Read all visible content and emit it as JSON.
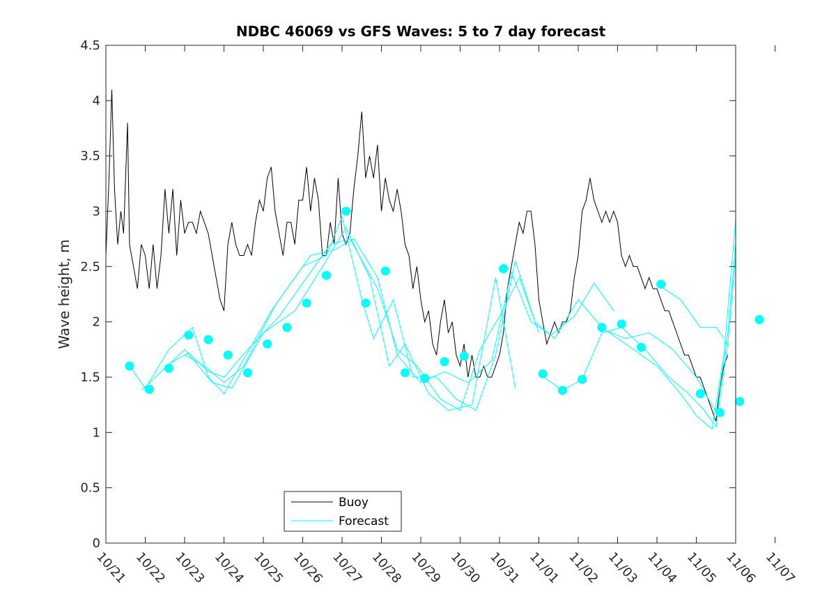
{
  "chart_data": {
    "type": "line",
    "title": "NDBC 46069 vs GFS Waves: 5 to 7 day forecast",
    "xlabel": "",
    "ylabel": "Wave height, m",
    "ylim": [
      0,
      4.5
    ],
    "yticks": [
      "0",
      "0.5",
      "1",
      "1.5",
      "2",
      "2.5",
      "3",
      "3.5",
      "4",
      "4.5"
    ],
    "xlim": [
      0,
      16
    ],
    "xticks": [
      "10/21",
      "10/22",
      "10/23",
      "10/24",
      "10/25",
      "10/26",
      "10/27",
      "10/28",
      "10/29",
      "10/30",
      "10/31",
      "11/01",
      "11/02",
      "11/03",
      "11/04",
      "11/05",
      "11/06",
      "11/07"
    ],
    "legend": {
      "position": "bottom-center",
      "entries": [
        "Buoy",
        "Forecast"
      ]
    },
    "colors": {
      "buoy": "#000000",
      "forecast": "#00ffff"
    },
    "buoy": [
      [
        0.0,
        2.6
      ],
      [
        0.08,
        3.3
      ],
      [
        0.15,
        4.1
      ],
      [
        0.22,
        3.2
      ],
      [
        0.3,
        2.7
      ],
      [
        0.38,
        3.0
      ],
      [
        0.45,
        2.8
      ],
      [
        0.55,
        3.8
      ],
      [
        0.6,
        2.7
      ],
      [
        0.7,
        2.5
      ],
      [
        0.8,
        2.3
      ],
      [
        0.9,
        2.7
      ],
      [
        1.0,
        2.6
      ],
      [
        1.1,
        2.3
      ],
      [
        1.2,
        2.7
      ],
      [
        1.3,
        2.3
      ],
      [
        1.4,
        2.6
      ],
      [
        1.5,
        3.2
      ],
      [
        1.6,
        2.8
      ],
      [
        1.7,
        3.2
      ],
      [
        1.8,
        2.6
      ],
      [
        1.9,
        3.1
      ],
      [
        2.0,
        2.8
      ],
      [
        2.1,
        2.9
      ],
      [
        2.2,
        2.9
      ],
      [
        2.3,
        2.8
      ],
      [
        2.4,
        3.0
      ],
      [
        2.5,
        2.9
      ],
      [
        2.6,
        2.8
      ],
      [
        2.7,
        2.6
      ],
      [
        2.8,
        2.4
      ],
      [
        2.9,
        2.2
      ],
      [
        3.0,
        2.1
      ],
      [
        3.1,
        2.7
      ],
      [
        3.2,
        2.9
      ],
      [
        3.3,
        2.7
      ],
      [
        3.4,
        2.6
      ],
      [
        3.5,
        2.6
      ],
      [
        3.6,
        2.7
      ],
      [
        3.7,
        2.6
      ],
      [
        3.8,
        2.9
      ],
      [
        3.9,
        3.1
      ],
      [
        4.0,
        3.0
      ],
      [
        4.1,
        3.3
      ],
      [
        4.2,
        3.4
      ],
      [
        4.3,
        3.0
      ],
      [
        4.4,
        2.8
      ],
      [
        4.5,
        2.6
      ],
      [
        4.6,
        2.9
      ],
      [
        4.7,
        2.9
      ],
      [
        4.8,
        2.7
      ],
      [
        4.9,
        3.1
      ],
      [
        5.0,
        3.1
      ],
      [
        5.1,
        3.4
      ],
      [
        5.2,
        3.0
      ],
      [
        5.3,
        3.3
      ],
      [
        5.4,
        3.1
      ],
      [
        5.5,
        2.6
      ],
      [
        5.6,
        2.6
      ],
      [
        5.7,
        2.9
      ],
      [
        5.8,
        2.7
      ],
      [
        5.9,
        3.3
      ],
      [
        6.0,
        2.8
      ],
      [
        6.1,
        2.7
      ],
      [
        6.2,
        2.8
      ],
      [
        6.3,
        3.2
      ],
      [
        6.4,
        3.5
      ],
      [
        6.5,
        3.9
      ],
      [
        6.6,
        3.3
      ],
      [
        6.7,
        3.5
      ],
      [
        6.8,
        3.3
      ],
      [
        6.9,
        3.6
      ],
      [
        7.0,
        3.0
      ],
      [
        7.1,
        3.3
      ],
      [
        7.2,
        3.1
      ],
      [
        7.3,
        3.0
      ],
      [
        7.4,
        3.2
      ],
      [
        7.5,
        3.0
      ],
      [
        7.6,
        2.7
      ],
      [
        7.7,
        2.6
      ],
      [
        7.8,
        2.3
      ],
      [
        7.9,
        2.5
      ],
      [
        8.0,
        2.2
      ],
      [
        8.1,
        2.0
      ],
      [
        8.2,
        2.1
      ],
      [
        8.3,
        1.8
      ],
      [
        8.4,
        1.7
      ],
      [
        8.5,
        2.0
      ],
      [
        8.6,
        2.2
      ],
      [
        8.7,
        1.9
      ],
      [
        8.8,
        2.0
      ],
      [
        8.9,
        1.7
      ],
      [
        9.0,
        1.6
      ],
      [
        9.1,
        1.8
      ],
      [
        9.2,
        1.5
      ],
      [
        9.3,
        1.7
      ],
      [
        9.4,
        1.5
      ],
      [
        9.5,
        1.5
      ],
      [
        9.6,
        1.6
      ],
      [
        9.7,
        1.5
      ],
      [
        9.8,
        1.5
      ],
      [
        9.9,
        1.6
      ],
      [
        10.0,
        1.7
      ],
      [
        10.1,
        1.9
      ],
      [
        10.2,
        2.3
      ],
      [
        10.3,
        2.5
      ],
      [
        10.4,
        2.7
      ],
      [
        10.5,
        2.9
      ],
      [
        10.6,
        2.8
      ],
      [
        10.7,
        3.0
      ],
      [
        10.8,
        3.0
      ],
      [
        10.9,
        2.7
      ],
      [
        11.0,
        2.2
      ],
      [
        11.1,
        2.0
      ],
      [
        11.2,
        1.8
      ],
      [
        11.3,
        1.9
      ],
      [
        11.4,
        2.0
      ],
      [
        11.5,
        1.9
      ],
      [
        11.6,
        2.0
      ],
      [
        11.7,
        2.0
      ],
      [
        11.8,
        2.1
      ],
      [
        11.9,
        2.4
      ],
      [
        12.0,
        2.6
      ],
      [
        12.1,
        3.0
      ],
      [
        12.2,
        3.1
      ],
      [
        12.3,
        3.3
      ],
      [
        12.4,
        3.1
      ],
      [
        12.5,
        3.0
      ],
      [
        12.6,
        2.9
      ],
      [
        12.7,
        3.0
      ],
      [
        12.8,
        2.9
      ],
      [
        12.9,
        3.0
      ],
      [
        13.0,
        2.9
      ],
      [
        13.1,
        2.6
      ],
      [
        13.2,
        2.5
      ],
      [
        13.3,
        2.6
      ],
      [
        13.4,
        2.5
      ],
      [
        13.5,
        2.5
      ],
      [
        13.6,
        2.4
      ],
      [
        13.7,
        2.3
      ],
      [
        13.8,
        2.4
      ],
      [
        13.9,
        2.3
      ],
      [
        14.0,
        2.3
      ],
      [
        14.1,
        2.2
      ],
      [
        14.2,
        2.1
      ],
      [
        14.3,
        2.1
      ],
      [
        14.4,
        2.0
      ],
      [
        14.5,
        1.9
      ],
      [
        14.6,
        1.8
      ],
      [
        14.7,
        1.7
      ],
      [
        14.8,
        1.7
      ],
      [
        14.9,
        1.6
      ],
      [
        15.0,
        1.5
      ],
      [
        15.1,
        1.5
      ],
      [
        15.2,
        1.4
      ],
      [
        15.3,
        1.3
      ],
      [
        15.4,
        1.2
      ],
      [
        15.5,
        1.1
      ],
      [
        15.6,
        1.4
      ],
      [
        15.7,
        1.6
      ],
      [
        15.8,
        1.7
      ]
    ],
    "forecast_series": [
      {
        "name": "Forecast",
        "points": [
          [
            0.6,
            1.6
          ],
          [
            1.0,
            1.4
          ],
          [
            1.6,
            1.75
          ],
          [
            2.2,
            1.95
          ],
          [
            2.6,
            1.5
          ],
          [
            3.0,
            1.35
          ],
          [
            3.4,
            1.6
          ],
          [
            4.2,
            2.1
          ],
          [
            5.0,
            2.5
          ],
          [
            5.6,
            2.6
          ],
          [
            6.0,
            2.95
          ],
          [
            6.5,
            2.2
          ],
          [
            6.8,
            1.85
          ],
          [
            7.3,
            2.2
          ],
          [
            7.8,
            1.5
          ],
          [
            8.4,
            1.5
          ],
          [
            8.9,
            1.3
          ],
          [
            9.4,
            1.2
          ],
          [
            9.9,
            1.7
          ],
          [
            10.4,
            2.55
          ],
          [
            10.9,
            2.0
          ],
          [
            11.4,
            1.85
          ],
          [
            12.0,
            2.2
          ],
          [
            12.6,
            1.95
          ],
          [
            13.2,
            1.8
          ],
          [
            14.0,
            1.6
          ],
          [
            14.6,
            1.35
          ],
          [
            15.0,
            1.15
          ],
          [
            15.4,
            1.03
          ],
          [
            15.7,
            1.7
          ],
          [
            16.0,
            2.92
          ]
        ]
      },
      {
        "name": "Forecast",
        "points": [
          [
            0.9,
            1.38
          ],
          [
            1.4,
            1.55
          ],
          [
            2.0,
            1.75
          ],
          [
            2.7,
            1.45
          ],
          [
            3.2,
            1.4
          ],
          [
            4.0,
            1.9
          ],
          [
            4.8,
            2.1
          ],
          [
            5.5,
            2.5
          ],
          [
            6.1,
            2.85
          ],
          [
            6.7,
            2.4
          ],
          [
            7.2,
            1.6
          ],
          [
            7.6,
            1.8
          ],
          [
            8.2,
            1.35
          ],
          [
            8.7,
            1.2
          ],
          [
            9.3,
            1.25
          ],
          [
            9.9,
            2.4
          ],
          [
            10.4,
            1.4
          ]
        ]
      },
      {
        "name": "Forecast",
        "points": [
          [
            1.5,
            1.6
          ],
          [
            2.1,
            1.72
          ],
          [
            2.6,
            1.55
          ],
          [
            3.0,
            1.5
          ],
          [
            3.6,
            1.75
          ],
          [
            4.4,
            2.05
          ],
          [
            5.1,
            2.4
          ],
          [
            5.7,
            2.7
          ],
          [
            6.2,
            2.75
          ],
          [
            6.9,
            2.3
          ],
          [
            7.4,
            1.75
          ],
          [
            7.9,
            1.6
          ],
          [
            8.5,
            1.3
          ],
          [
            9.0,
            1.2
          ],
          [
            9.5,
            1.75
          ],
          [
            10.0,
            2.05
          ],
          [
            10.5,
            2.4
          ],
          [
            11.0,
            1.9
          ]
        ]
      },
      {
        "name": "Forecast",
        "points": [
          [
            2.0,
            1.7
          ],
          [
            2.5,
            1.6
          ],
          [
            3.0,
            1.45
          ],
          [
            3.5,
            1.6
          ],
          [
            4.3,
            2.15
          ],
          [
            5.2,
            2.6
          ],
          [
            5.8,
            2.65
          ],
          [
            6.3,
            2.75
          ],
          [
            6.9,
            2.4
          ],
          [
            7.4,
            1.7
          ],
          [
            8.0,
            1.45
          ],
          [
            8.6,
            1.55
          ],
          [
            9.2,
            1.45
          ],
          [
            9.8,
            1.65
          ],
          [
            10.3,
            2.45
          ],
          [
            10.8,
            2.0
          ],
          [
            11.3,
            1.88
          ],
          [
            11.9,
            2.05
          ],
          [
            12.4,
            2.35
          ],
          [
            12.9,
            2.1
          ]
        ]
      },
      {
        "name": "Forecast",
        "points": [
          [
            11.0,
            1.53
          ],
          [
            11.6,
            1.38
          ],
          [
            12.1,
            1.48
          ],
          [
            12.6,
            1.9
          ],
          [
            13.1,
            1.95
          ],
          [
            13.7,
            1.75
          ],
          [
            14.3,
            1.5
          ],
          [
            14.8,
            1.35
          ],
          [
            15.2,
            1.2
          ],
          [
            15.5,
            1.05
          ],
          [
            15.8,
            1.8
          ],
          [
            16.0,
            2.6
          ]
        ]
      },
      {
        "name": "Forecast",
        "points": [
          [
            12.5,
            1.95
          ],
          [
            13.2,
            1.85
          ],
          [
            13.8,
            1.9
          ],
          [
            14.4,
            1.75
          ],
          [
            15.0,
            1.5
          ],
          [
            15.5,
            1.18
          ],
          [
            15.8,
            1.9
          ],
          [
            16.0,
            2.7
          ]
        ]
      },
      {
        "name": "Forecast",
        "points": [
          [
            14.0,
            2.34
          ],
          [
            14.6,
            2.2
          ],
          [
            15.1,
            1.95
          ],
          [
            15.5,
            1.95
          ],
          [
            15.7,
            1.85
          ]
        ]
      }
    ],
    "forecast_markers": [
      [
        0.6,
        1.6
      ],
      [
        1.1,
        1.39
      ],
      [
        1.6,
        1.58
      ],
      [
        2.1,
        1.88
      ],
      [
        2.6,
        1.84
      ],
      [
        3.1,
        1.7
      ],
      [
        3.6,
        1.54
      ],
      [
        4.1,
        1.8
      ],
      [
        4.6,
        1.95
      ],
      [
        5.1,
        2.17
      ],
      [
        5.6,
        2.42
      ],
      [
        6.1,
        3.0
      ],
      [
        6.6,
        2.17
      ],
      [
        7.1,
        2.46
      ],
      [
        7.6,
        1.54
      ],
      [
        8.1,
        1.49
      ],
      [
        8.6,
        1.64
      ],
      [
        9.1,
        1.69
      ],
      [
        10.1,
        2.48
      ],
      [
        11.1,
        1.53
      ],
      [
        11.6,
        1.38
      ],
      [
        12.1,
        1.48
      ],
      [
        12.6,
        1.95
      ],
      [
        13.1,
        1.98
      ],
      [
        13.6,
        1.77
      ],
      [
        14.1,
        2.34
      ],
      [
        15.1,
        1.35
      ],
      [
        15.6,
        1.18
      ],
      [
        16.1,
        1.28
      ],
      [
        16.6,
        2.02
      ]
    ]
  }
}
